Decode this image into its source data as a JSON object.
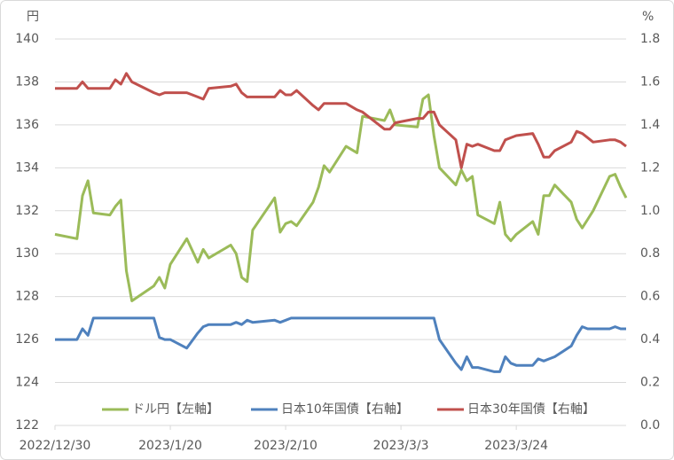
{
  "chart_data": {
    "type": "line",
    "y_unit": "円",
    "y2_unit": "%",
    "x": [
      "2022/12/30",
      "2023/1/3",
      "2023/1/4",
      "2023/1/5",
      "2023/1/6",
      "2023/1/9",
      "2023/1/10",
      "2023/1/11",
      "2023/1/12",
      "2023/1/13",
      "2023/1/17",
      "2023/1/18",
      "2023/1/19",
      "2023/1/20",
      "2023/1/23",
      "2023/1/25",
      "2023/1/26",
      "2023/1/27",
      "2023/1/31",
      "2023/2/1",
      "2023/2/2",
      "2023/2/3",
      "2023/2/4",
      "2023/2/8",
      "2023/2/9",
      "2023/2/10",
      "2023/2/11",
      "2023/2/12",
      "2023/2/15",
      "2023/2/16",
      "2023/2/17",
      "2023/2/18",
      "2023/2/19",
      "2023/2/21",
      "2023/2/23",
      "2023/2/24",
      "2023/2/28",
      "2023/3/1",
      "2023/3/2",
      "2023/3/6",
      "2023/3/7",
      "2023/3/8",
      "2023/3/9",
      "2023/3/10",
      "2023/3/13",
      "2023/3/14",
      "2023/3/15",
      "2023/3/16",
      "2023/3/17",
      "2023/3/20",
      "2023/3/21",
      "2023/3/22",
      "2023/3/23",
      "2023/3/24",
      "2023/3/27",
      "2023/3/28",
      "2023/3/29",
      "2023/3/30",
      "2023/3/31",
      "2023/4/3",
      "2023/4/4",
      "2023/4/5",
      "2023/4/6",
      "2023/4/7",
      "2023/4/10",
      "2023/4/11",
      "2023/4/12",
      "2023/4/13"
    ],
    "xlim": [
      "2022/12/30",
      "2023/4/13"
    ],
    "xticks": [
      "2022/12/30",
      "2023/1/20",
      "2023/2/10",
      "2023/3/3",
      "2023/3/24"
    ],
    "series": [
      {
        "name": "ドル円【左軸】",
        "color": "#9bbb59",
        "axis": "y",
        "values": [
          130.9,
          130.7,
          132.7,
          133.4,
          131.9,
          131.8,
          132.2,
          132.5,
          129.2,
          127.8,
          128.5,
          128.9,
          128.4,
          129.5,
          130.7,
          129.6,
          130.2,
          129.8,
          130.4,
          130.0,
          128.9,
          128.7,
          131.1,
          132.6,
          131.0,
          131.4,
          131.5,
          131.3,
          132.4,
          133.1,
          134.1,
          133.8,
          134.2,
          135.0,
          134.7,
          136.4,
          136.2,
          136.7,
          136.0,
          135.9,
          137.2,
          137.4,
          135.5,
          134.0,
          133.2,
          133.9,
          133.4,
          133.6,
          131.8,
          131.4,
          132.4,
          130.9,
          130.6,
          130.9,
          131.5,
          130.9,
          132.7,
          132.7,
          133.2,
          132.4,
          131.6,
          131.2,
          131.6,
          132.0,
          133.6,
          133.7,
          133.1,
          132.6
        ]
      },
      {
        "name": "日本10年国債【右軸】",
        "color": "#4f81bd",
        "axis": "y2",
        "values": [
          0.4,
          0.4,
          0.45,
          0.42,
          0.5,
          0.5,
          0.5,
          0.5,
          0.5,
          0.5,
          0.5,
          0.41,
          0.4,
          0.4,
          0.36,
          0.43,
          0.46,
          0.47,
          0.47,
          0.48,
          0.47,
          0.49,
          0.48,
          0.49,
          0.48,
          0.49,
          0.5,
          0.5,
          0.5,
          0.5,
          0.5,
          0.5,
          0.5,
          0.5,
          0.5,
          0.5,
          0.5,
          0.5,
          0.5,
          0.5,
          0.5,
          0.5,
          0.5,
          0.4,
          0.29,
          0.26,
          0.32,
          0.27,
          0.27,
          0.25,
          0.25,
          0.32,
          0.29,
          0.28,
          0.28,
          0.31,
          0.3,
          0.31,
          0.32,
          0.37,
          0.42,
          0.46,
          0.45,
          0.45,
          0.45,
          0.46,
          0.45,
          0.45
        ]
      },
      {
        "name": "日本30年国債【右軸】",
        "color": "#c0504d",
        "axis": "y2",
        "values": [
          1.57,
          1.57,
          1.6,
          1.57,
          1.57,
          1.57,
          1.61,
          1.59,
          1.64,
          1.6,
          1.55,
          1.54,
          1.55,
          1.55,
          1.55,
          1.53,
          1.52,
          1.57,
          1.58,
          1.59,
          1.55,
          1.53,
          1.53,
          1.53,
          1.56,
          1.54,
          1.54,
          1.56,
          1.49,
          1.47,
          1.5,
          1.5,
          1.5,
          1.5,
          1.47,
          1.46,
          1.38,
          1.38,
          1.41,
          1.43,
          1.43,
          1.46,
          1.46,
          1.4,
          1.33,
          1.2,
          1.31,
          1.3,
          1.31,
          1.28,
          1.28,
          1.33,
          1.34,
          1.35,
          1.36,
          1.31,
          1.25,
          1.25,
          1.28,
          1.32,
          1.37,
          1.36,
          1.34,
          1.32,
          1.33,
          1.33,
          1.32,
          1.3
        ]
      }
    ],
    "ylim": [
      122,
      140
    ],
    "yticks": [
      122,
      124,
      126,
      128,
      130,
      132,
      134,
      136,
      138,
      140
    ],
    "y2lim": [
      0,
      1.8
    ],
    "y2ticks": [
      {
        "value": 0,
        "label": "0.0"
      },
      0.2,
      0.4,
      0.6,
      0.8,
      {
        "value": 1,
        "label": "1.0"
      },
      1.2,
      1.4,
      1.6,
      1.8
    ],
    "grid": true,
    "legend": "bottom"
  }
}
